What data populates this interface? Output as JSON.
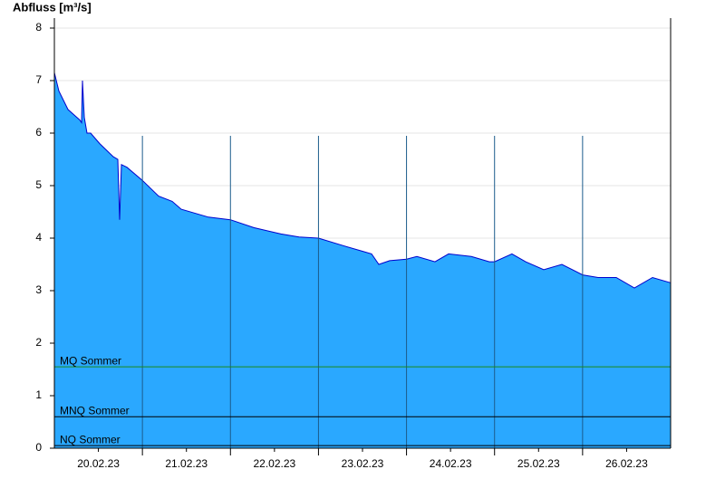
{
  "chart_data": {
    "type": "area",
    "y_label": "Abfluss [m³/s]",
    "x": [
      0,
      0.051,
      0.154,
      0.288,
      0.309,
      0.319,
      0.34,
      0.371,
      0.412,
      0.515,
      0.669,
      0.721,
      0.741,
      0.762,
      0.824,
      1.0,
      1.184,
      1.338,
      1.441,
      1.75,
      2.0,
      2.265,
      2.574,
      2.779,
      3.0,
      3.294,
      3.5,
      3.603,
      3.685,
      3.809,
      4.0,
      4.118,
      4.324,
      4.478,
      4.736,
      4.941,
      5.0,
      5.198,
      5.353,
      5.559,
      5.765,
      6.0,
      6.176,
      6.382,
      6.588,
      6.794,
      7.0
    ],
    "series": [
      {
        "color": "#2aa8ff",
        "line_color": "#0000cc",
        "values": [
          7.15,
          6.8,
          6.45,
          6.25,
          6.2,
          7.0,
          6.3,
          6.0,
          6.0,
          5.8,
          5.55,
          5.5,
          4.35,
          5.4,
          5.35,
          5.1,
          4.8,
          4.7,
          4.55,
          4.4,
          4.35,
          4.2,
          4.08,
          4.02,
          4.0,
          3.85,
          3.75,
          3.7,
          3.5,
          3.57,
          3.6,
          3.65,
          3.55,
          3.7,
          3.65,
          3.55,
          3.55,
          3.7,
          3.55,
          3.4,
          3.5,
          3.3,
          3.25,
          3.25,
          3.05,
          3.25,
          3.15
        ]
      }
    ],
    "xlim": [
      0,
      7
    ],
    "xticks": [
      {
        "value": 0.5,
        "label": "20.02.23"
      },
      {
        "value": 1.5,
        "label": "21.02.23"
      },
      {
        "value": 2.5,
        "label": "22.02.23"
      },
      {
        "value": 3.5,
        "label": "23.02.23"
      },
      {
        "value": 4.5,
        "label": "24.02.23"
      },
      {
        "value": 5.5,
        "label": "25.02.23"
      },
      {
        "value": 6.5,
        "label": "26.02.23"
      }
    ],
    "xgrid": [
      1,
      2,
      3,
      4,
      5,
      6
    ],
    "ylim": [
      0,
      8
    ],
    "yticks": [
      0,
      1,
      2,
      3,
      4,
      5,
      6,
      7,
      8
    ],
    "grid": true,
    "ref_lines": [
      {
        "name": "MQ Sommer",
        "value": 1.55,
        "color": "#1a8a1a"
      },
      {
        "name": "MNQ Sommer",
        "value": 0.6,
        "color": "#000000"
      },
      {
        "name": "NQ Sommer",
        "value": 0.05,
        "color": "#000000"
      }
    ]
  }
}
